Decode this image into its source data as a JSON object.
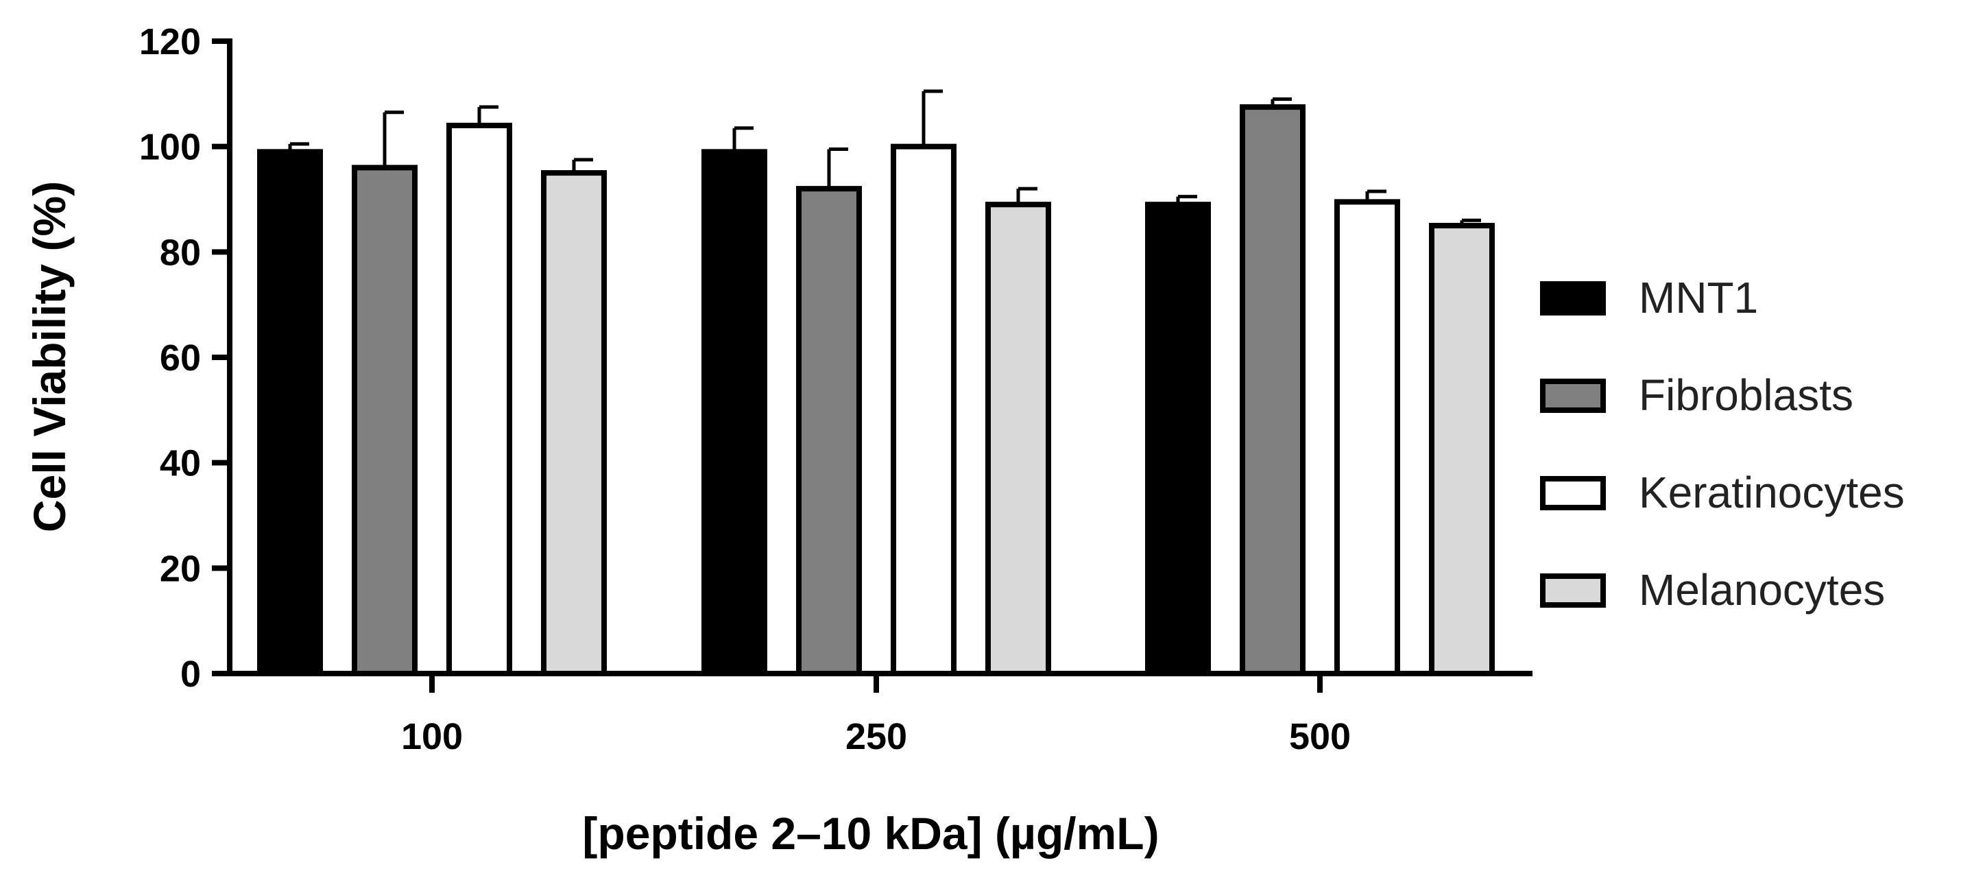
{
  "chart_data": {
    "type": "bar",
    "title": "",
    "xlabel": "[peptide 2–10 kDa] (µg/mL)",
    "ylabel": "Cell Viability (%)",
    "ylim": [
      0,
      120
    ],
    "yticks": [
      0,
      20,
      40,
      60,
      80,
      100,
      120
    ],
    "categories": [
      "100",
      "250",
      "500"
    ],
    "legend_position": "right",
    "series": [
      {
        "name": "MNT1",
        "color": "#000000",
        "values": [
          99,
          99,
          89
        ],
        "errors": [
          1.5,
          4.5,
          1.5
        ]
      },
      {
        "name": "Fibroblasts",
        "color": "#808080",
        "values": [
          96,
          92,
          107.5
        ],
        "errors": [
          10.5,
          7.5,
          1.5
        ]
      },
      {
        "name": "Keratinocytes",
        "color": "#ffffff",
        "values": [
          104,
          100,
          89.5
        ],
        "errors": [
          3.5,
          10.5,
          2
        ]
      },
      {
        "name": "Melanocytes",
        "color": "#d9d9d9",
        "values": [
          95,
          89,
          85
        ],
        "errors": [
          2.5,
          3,
          1
        ]
      }
    ]
  }
}
